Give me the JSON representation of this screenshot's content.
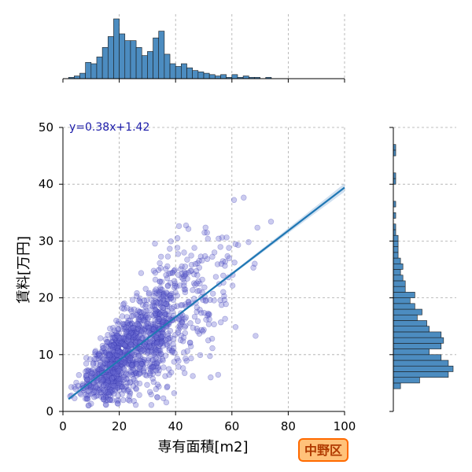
{
  "chart_data": {
    "type": "scatter",
    "title": "",
    "xlabel": "専有面積[m2]",
    "ylabel": "賃料[万円]",
    "xlim": [
      0,
      100
    ],
    "ylim": [
      0,
      50
    ],
    "xticks": [
      0,
      20,
      40,
      60,
      80,
      100
    ],
    "yticks": [
      0,
      10,
      20,
      30,
      40,
      50
    ],
    "grid": true,
    "regression": {
      "equation": "y=0.38x+1.42",
      "slope": 0.38,
      "intercept": 1.42,
      "x_range": [
        2,
        100
      ]
    },
    "badge": "中野区",
    "marginal_x_hist": {
      "bin_width": 2,
      "bin_start": 0,
      "counts": [
        0,
        1,
        2,
        4,
        12,
        11,
        16,
        23,
        31,
        44,
        33,
        28,
        28,
        23,
        17,
        20,
        30,
        35,
        18,
        11,
        9,
        11,
        8,
        6,
        5,
        4,
        3,
        2,
        3,
        1,
        3,
        1,
        2,
        1,
        1,
        0,
        1,
        0,
        0,
        0,
        0,
        0,
        0,
        0,
        0,
        0,
        0,
        0,
        0,
        0
      ]
    },
    "marginal_y_hist": {
      "bin_width": 1,
      "bin_start": 0,
      "counts": [
        0,
        0,
        0,
        0,
        3,
        11,
        23,
        25,
        23,
        20,
        15,
        20,
        21,
        20,
        15,
        14,
        10,
        12,
        9,
        7,
        9,
        5,
        5,
        4,
        3,
        4,
        3,
        2,
        2,
        2,
        2,
        1,
        1,
        0,
        1,
        0,
        1,
        0,
        0,
        0,
        1,
        1,
        0,
        0,
        0,
        1,
        1,
        0,
        0,
        0
      ]
    },
    "colors": {
      "scatter_fill": "#6a6ad0",
      "scatter_edge": "#2a2aa8",
      "regression": "#1f77b4",
      "ci_band": "#bcd3ea",
      "hist_fill": "#4c8cc0",
      "equation_text": "#1a1aa8",
      "badge_bg": "#ffc27a",
      "badge_border": "#ff6a00",
      "badge_text": "#b03a00",
      "grid": "#aaaaaa"
    }
  }
}
